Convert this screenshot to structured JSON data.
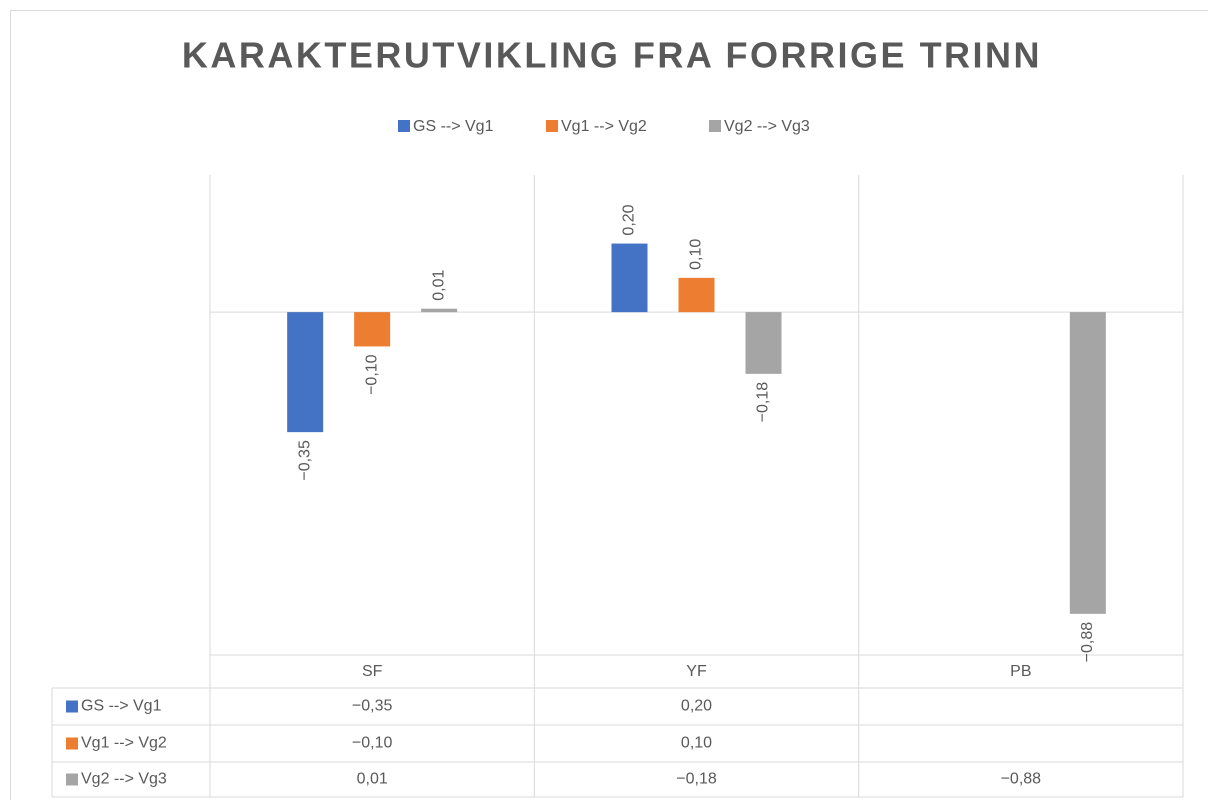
{
  "chart_data": {
    "type": "bar",
    "title": "KARAKTERUTVIKLING FRA FORRIGE TRINN",
    "categories": [
      "SF",
      "YF",
      "PB"
    ],
    "series": [
      {
        "name": "GS --> Vg1",
        "color": "#4472c4",
        "values": [
          -0.35,
          0.2,
          null
        ],
        "value_labels": [
          "−0,35",
          "0,20",
          null
        ]
      },
      {
        "name": "Vg1 --> Vg2",
        "color": "#ed7d31",
        "values": [
          -0.1,
          0.1,
          null
        ],
        "value_labels": [
          "−0,10",
          "0,10",
          null
        ]
      },
      {
        "name": "Vg2 --> Vg3",
        "color": "#a5a5a5",
        "values": [
          0.01,
          -0.18,
          -0.88
        ],
        "value_labels": [
          "0,01",
          "−0,18",
          "−0,88"
        ]
      }
    ],
    "ylim": [
      -1.0,
      0.4
    ],
    "legend": "top"
  }
}
